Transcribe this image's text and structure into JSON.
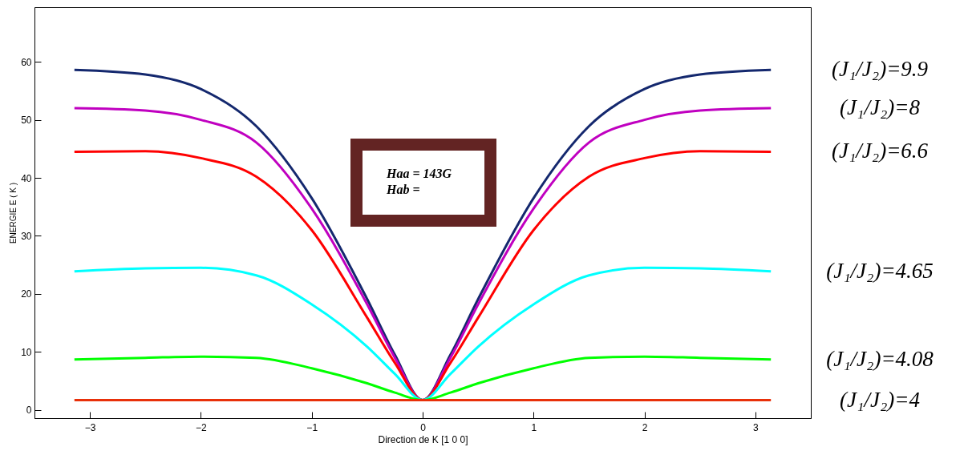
{
  "chart_data": {
    "type": "line",
    "xlabel": "Direction de K [1 0 0]",
    "ylabel": "ENERGIE E ( K )",
    "x": [
      -3.14,
      -2.5,
      -2,
      -1.5,
      -1,
      -0.5,
      -0.25,
      0,
      0.25,
      0.5,
      1,
      1.5,
      2,
      2.5,
      3.14
    ],
    "xlim": [
      -3.5,
      3.5
    ],
    "xticks": [
      -3,
      -2,
      -1,
      0,
      1,
      2,
      3
    ],
    "ylim": [
      -1.4,
      69.4
    ],
    "yticks": [
      0,
      10,
      20,
      30,
      40,
      50,
      60
    ],
    "marker": "none",
    "line_style": "solid",
    "series": [
      {
        "name": "(J₁/J₂)=9.9",
        "color": "#14286e",
        "values": [
          58.6,
          57.8,
          55.3,
          48.9,
          36.5,
          19.1,
          9.5,
          1.7,
          9.5,
          19.1,
          36.5,
          48.9,
          55.3,
          57.8,
          58.6
        ]
      },
      {
        "name": "(J₁/J₂)=8",
        "color": "#c000c0",
        "values": [
          52.0,
          51.6,
          50.0,
          46.1,
          34.7,
          18.2,
          9.0,
          1.7,
          9.0,
          18.2,
          34.7,
          46.1,
          50.0,
          51.6,
          52.0
        ]
      },
      {
        "name": "(J₁/J₂)=6.6",
        "color": "#ff0000",
        "values": [
          44.5,
          44.6,
          43.4,
          40.2,
          31.0,
          15.9,
          8.1,
          1.7,
          8.1,
          15.9,
          31.0,
          40.2,
          43.4,
          44.6,
          44.5
        ]
      },
      {
        "name": "(J₁/J₂)=4.65",
        "color": "#00ffff",
        "values": [
          23.9,
          24.4,
          24.5,
          23.2,
          18.2,
          10.9,
          6.2,
          1.7,
          6.2,
          10.9,
          18.2,
          23.2,
          24.5,
          24.4,
          23.9
        ]
      },
      {
        "name": "(J₁/J₂)=4.08",
        "color": "#00ff00",
        "values": [
          8.7,
          9.0,
          9.2,
          9.0,
          7.2,
          4.6,
          3.0,
          1.7,
          3.0,
          4.6,
          7.2,
          9.0,
          9.2,
          9.0,
          8.7
        ]
      },
      {
        "name": "(J₁/J₂)=4",
        "color": "#e8300a",
        "values": [
          1.7,
          1.7,
          1.7,
          1.7,
          1.7,
          1.7,
          1.7,
          1.7,
          1.7,
          1.7,
          1.7,
          1.7,
          1.7,
          1.7,
          1.7
        ]
      }
    ],
    "annotations": [
      "Haa = 143G",
      "Hab ="
    ]
  }
}
